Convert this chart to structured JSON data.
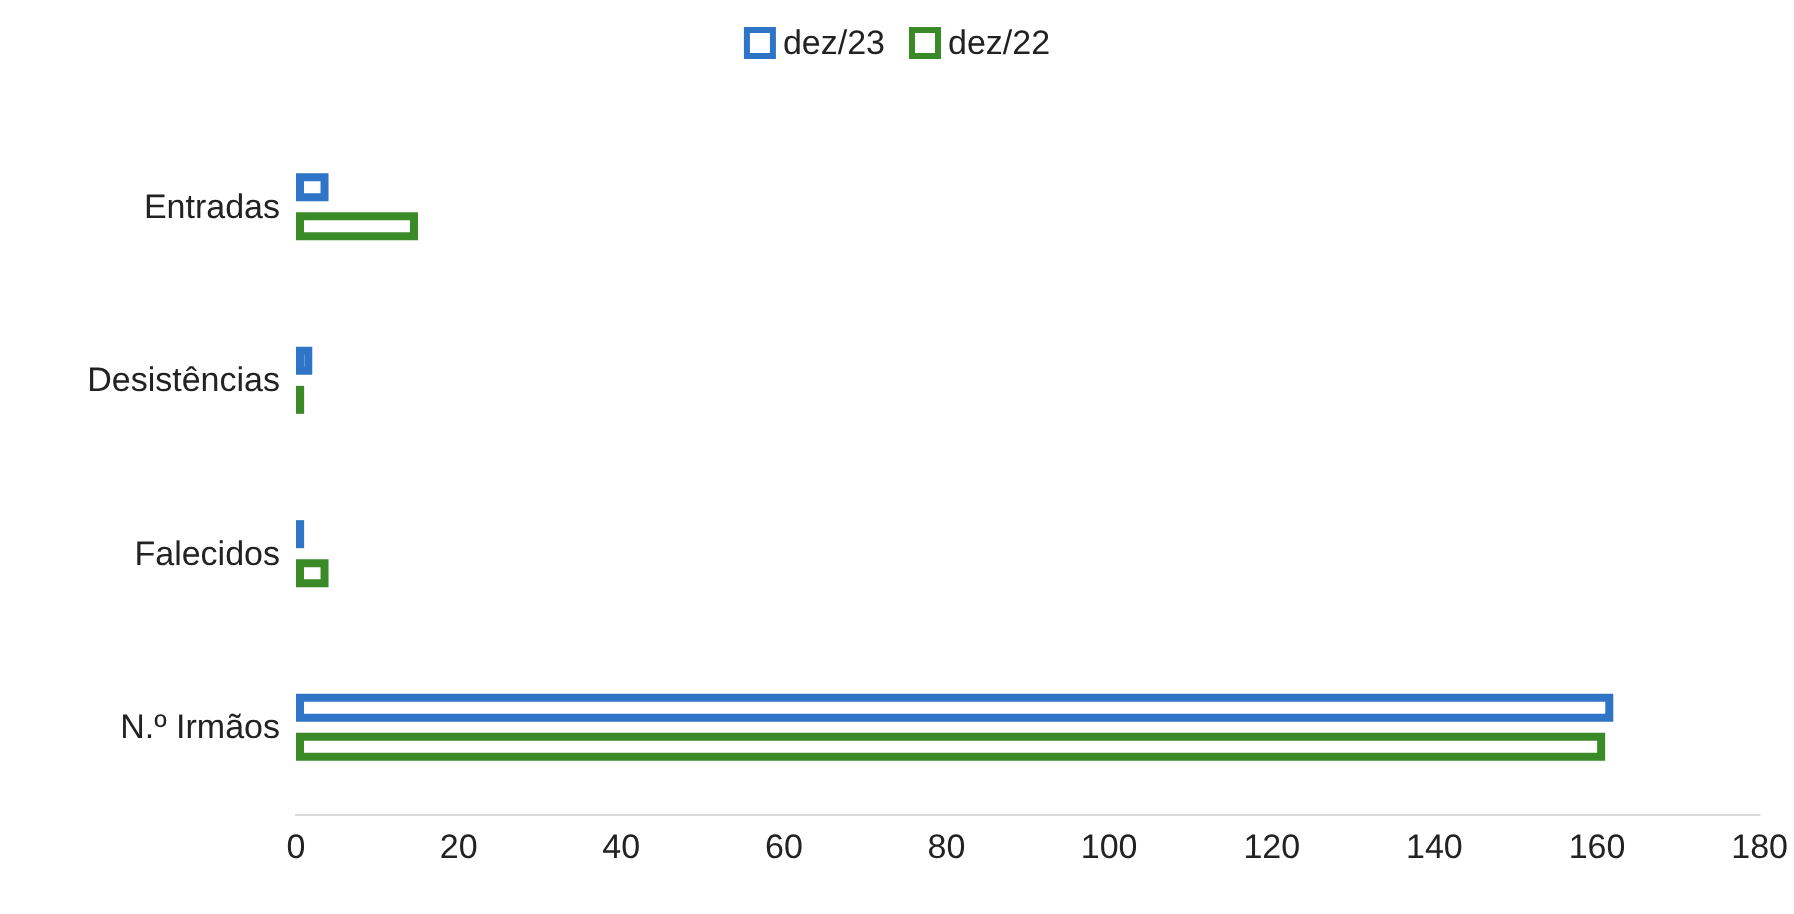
{
  "chart_data": {
    "type": "bar",
    "orientation": "horizontal",
    "categories": [
      "Entradas",
      "Desistências",
      "Falecidos",
      "N.º Irmãos"
    ],
    "series": [
      {
        "name": "dez/23",
        "color": "#2e75c8",
        "values": [
          4,
          2,
          1,
          162
        ]
      },
      {
        "name": "dez/22",
        "color": "#3a8a28",
        "values": [
          15,
          1,
          4,
          161
        ]
      }
    ],
    "xlim": [
      0,
      180
    ],
    "xticks": [
      0,
      20,
      40,
      60,
      80,
      100,
      120,
      140,
      160,
      180
    ],
    "grid": false,
    "legend": "top"
  }
}
